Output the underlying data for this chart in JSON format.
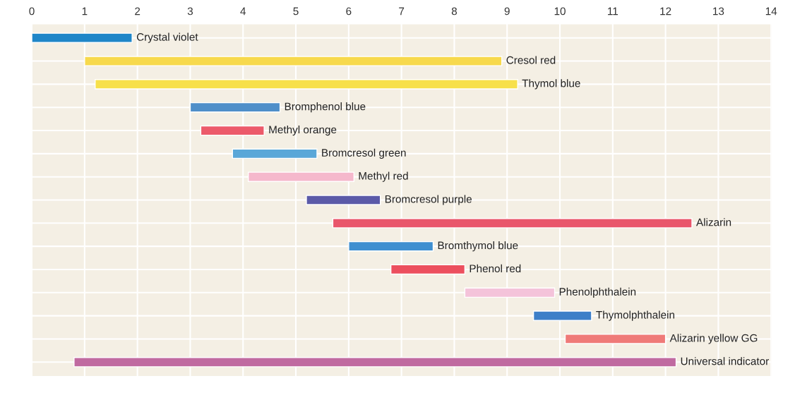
{
  "chart_data": {
    "type": "bar",
    "orientation": "horizontal",
    "categories": [
      "Crystal violet",
      "Cresol red",
      "Thymol blue",
      "Bromphenol blue",
      "Methyl orange",
      "Bromcresol green",
      "Methyl red",
      "Bromcresol purple",
      "Alizarin",
      "Bromthymol blue",
      "Phenol red",
      "Phenolphthalein",
      "Thymolphthalein",
      "Alizarin yellow GG",
      "Universal indicator"
    ],
    "base": [
      0,
      1.0,
      1.2,
      3.0,
      3.2,
      3.8,
      4.1,
      5.2,
      5.7,
      6.0,
      6.8,
      8.2,
      9.5,
      10.1,
      0.8
    ],
    "values": [
      1.9,
      7.9,
      8.0,
      1.7,
      1.2,
      1.6,
      2.0,
      1.4,
      6.8,
      1.6,
      1.4,
      1.7,
      1.1,
      1.9,
      11.4
    ],
    "colors": [
      "#1f86c8",
      "#f7d94c",
      "#f7e04a",
      "#4f8fc9",
      "#ec5a6a",
      "#5aa7d8",
      "#f5b8cc",
      "#5b5aa8",
      "#e9566b",
      "#3f8fd0",
      "#ec4f5e",
      "#f4c3da",
      "#3d7fc8",
      "#ef7a78",
      "#c06aa0"
    ],
    "xlim": [
      0,
      14
    ],
    "xticks": [
      0,
      1,
      2,
      3,
      4,
      5,
      6,
      7,
      8,
      9,
      10,
      11,
      12,
      13,
      14
    ],
    "grid": true,
    "tick_labels": "x"
  }
}
